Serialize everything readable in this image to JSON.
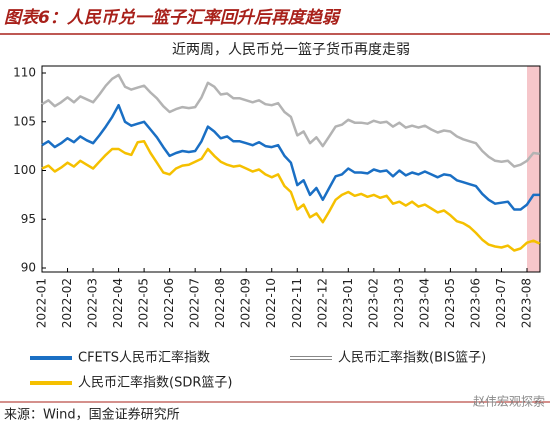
{
  "header": "图表6：人民币兑一篮子汇率回升后再度趋弱",
  "source": "来源：Wind，国金证券研究所",
  "watermark": "赵伟宏观探索",
  "chart_data": {
    "type": "line",
    "title": "近两周，人民币兑一篮子货币再度走弱",
    "categories": [
      "2022-01",
      null,
      null,
      null,
      "2022-02",
      null,
      null,
      null,
      "2022-03",
      null,
      null,
      null,
      "2022-04",
      null,
      null,
      null,
      "2022-05",
      null,
      null,
      null,
      "2022-06",
      null,
      null,
      null,
      "2022-07",
      null,
      null,
      null,
      "2022-08",
      null,
      null,
      null,
      "2022-09",
      null,
      null,
      null,
      "2022-10",
      null,
      null,
      null,
      "2022-11",
      null,
      null,
      null,
      "2022-12",
      null,
      null,
      null,
      "2023-01",
      null,
      null,
      null,
      "2023-02",
      null,
      null,
      null,
      "2023-03",
      null,
      null,
      null,
      "2023-04",
      null,
      null,
      null,
      "2023-05",
      null,
      null,
      null,
      "2023-06",
      null,
      null,
      null,
      "2023-07",
      null,
      null,
      null,
      "2023-08",
      null,
      null
    ],
    "series": [
      {
        "name": "CFETS人民币汇率指数",
        "color": "#1a6fc4",
        "values": [
          102.6,
          103.0,
          102.4,
          102.8,
          103.3,
          102.9,
          103.5,
          103.1,
          102.8,
          103.6,
          104.5,
          105.5,
          106.7,
          105.0,
          104.6,
          104.8,
          105.0,
          104.2,
          103.4,
          102.4,
          101.5,
          101.8,
          102.0,
          101.9,
          102.0,
          103.0,
          104.5,
          104.0,
          103.3,
          103.5,
          103.0,
          103.0,
          102.8,
          102.6,
          102.9,
          102.5,
          102.4,
          102.6,
          101.5,
          100.8,
          98.5,
          99.0,
          97.5,
          98.2,
          97.0,
          98.2,
          99.4,
          99.6,
          100.2,
          99.8,
          99.8,
          99.7,
          100.1,
          99.9,
          100.0,
          99.4,
          100.0,
          99.5,
          99.8,
          99.6,
          99.9,
          99.6,
          99.3,
          99.6,
          99.5,
          99.0,
          98.8,
          98.6,
          98.4,
          97.6,
          97.0,
          96.6,
          96.7,
          96.8,
          96.0,
          96.0,
          96.5,
          97.5,
          97.5
        ]
      },
      {
        "name": "人民币汇率指数(BIS篮子)",
        "color": "#b3b3b3",
        "values": [
          106.8,
          107.2,
          106.6,
          107.0,
          107.5,
          107.0,
          107.6,
          107.3,
          107.0,
          107.8,
          108.7,
          109.4,
          109.8,
          108.6,
          108.3,
          108.5,
          108.7,
          108.0,
          107.4,
          106.6,
          106.0,
          106.3,
          106.5,
          106.4,
          106.5,
          107.5,
          109.0,
          108.6,
          107.8,
          107.9,
          107.4,
          107.4,
          107.2,
          107.0,
          107.2,
          106.8,
          106.7,
          106.9,
          106.0,
          105.5,
          103.6,
          104.0,
          102.8,
          103.4,
          102.5,
          103.5,
          104.5,
          104.7,
          105.2,
          104.9,
          104.9,
          104.8,
          105.1,
          104.9,
          105.0,
          104.5,
          104.9,
          104.4,
          104.6,
          104.4,
          104.6,
          104.2,
          103.9,
          104.1,
          104.0,
          103.5,
          103.2,
          103.0,
          102.8,
          102.0,
          101.4,
          101.0,
          100.9,
          101.0,
          100.4,
          100.6,
          101.0,
          101.8,
          101.7
        ]
      },
      {
        "name": "人民币汇率指数(SDR篮子)",
        "color": "#f5c000",
        "values": [
          100.2,
          100.5,
          99.9,
          100.3,
          100.8,
          100.4,
          101.0,
          100.6,
          100.2,
          100.9,
          101.6,
          102.2,
          102.2,
          101.8,
          101.6,
          102.9,
          103.0,
          101.8,
          100.8,
          99.8,
          99.6,
          100.2,
          100.5,
          100.6,
          100.9,
          101.2,
          102.2,
          101.5,
          100.9,
          100.6,
          100.4,
          100.5,
          100.2,
          99.9,
          100.1,
          99.6,
          99.3,
          99.6,
          98.4,
          97.8,
          96.0,
          96.5,
          95.2,
          95.6,
          94.7,
          95.8,
          97.0,
          97.5,
          97.8,
          97.4,
          97.6,
          97.3,
          97.5,
          97.2,
          97.4,
          96.6,
          96.8,
          96.4,
          96.8,
          96.3,
          96.5,
          96.1,
          95.7,
          95.9,
          95.4,
          94.8,
          94.6,
          94.2,
          93.6,
          92.9,
          92.4,
          92.2,
          92.1,
          92.3,
          91.8,
          92.0,
          92.6,
          92.8,
          92.5
        ]
      }
    ],
    "ylim": [
      90,
      110
    ],
    "yticks": [
      90,
      95,
      100,
      105,
      110
    ]
  }
}
